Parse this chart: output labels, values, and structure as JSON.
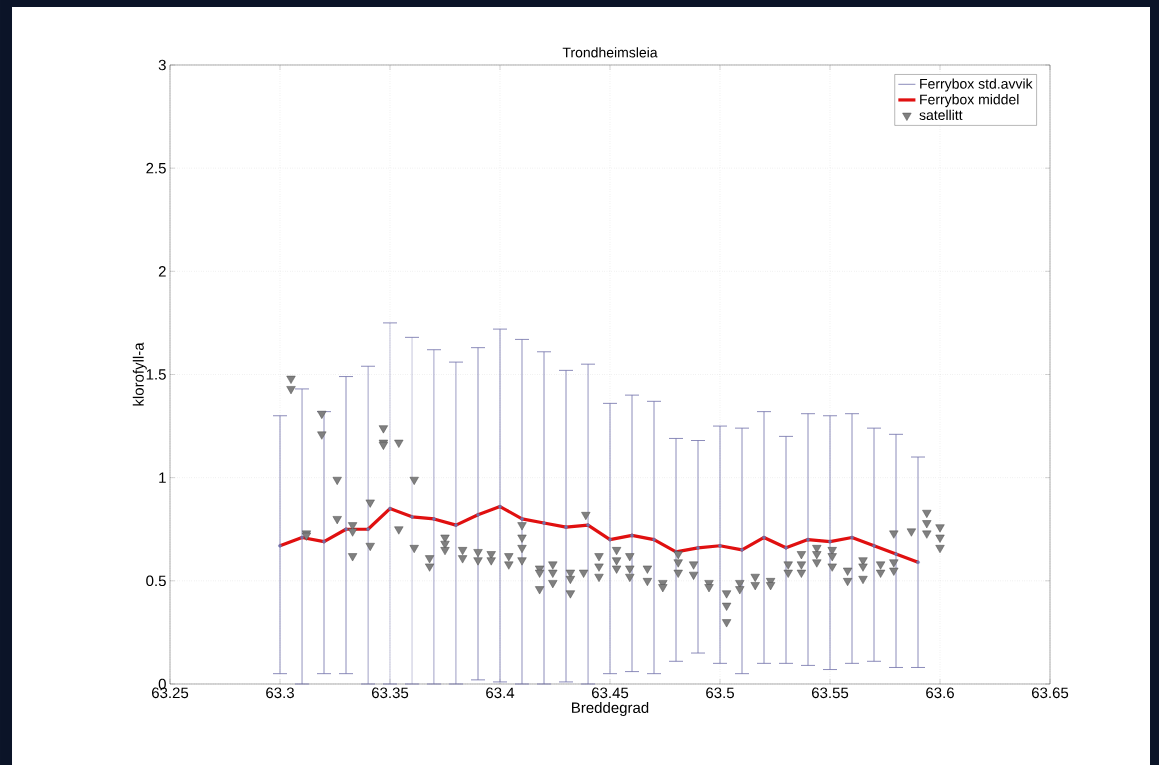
{
  "chart_data": {
    "type": "line",
    "title": "Trondheimsleia",
    "xlabel": "Breddegrad",
    "ylabel": "klorofyll-a",
    "xlim": [
      63.25,
      63.65
    ],
    "xticks": [
      63.25,
      63.3,
      63.35,
      63.4,
      63.45,
      63.5,
      63.55,
      63.6,
      63.65
    ],
    "ylim": [
      0,
      3
    ],
    "yticks": [
      0,
      0.5,
      1,
      1.5,
      2,
      2.5,
      3
    ],
    "grid": true,
    "legend": "top right",
    "series": [
      {
        "name": "Ferrybox std.avvik",
        "type": "scatter",
        "marker": "circle",
        "color": "#6f6fa8",
        "x": [
          63.3,
          63.31,
          63.32,
          63.33,
          63.34,
          63.35,
          63.36,
          63.37,
          63.38,
          63.39,
          63.4,
          63.41,
          63.42,
          63.43,
          63.44,
          63.45,
          63.46,
          63.47,
          63.48,
          63.49,
          63.5,
          63.51,
          63.52,
          63.53,
          63.54,
          63.55,
          63.56,
          63.57,
          63.58,
          63.59
        ],
        "values": [
          0.67,
          0.71,
          0.69,
          0.75,
          0.75,
          0.85,
          0.81,
          0.8,
          0.77,
          0.82,
          0.86,
          0.8,
          0.78,
          0.76,
          0.77,
          0.7,
          0.72,
          0.7,
          0.64,
          0.66,
          0.67,
          0.65,
          0.71,
          0.66,
          0.7,
          0.69,
          0.71,
          0.67,
          0.63,
          0.59
        ],
        "errors": [
          [
            0.05,
            1.3
          ],
          [
            0,
            1.43
          ],
          [
            0.05,
            1.32
          ],
          [
            0.05,
            1.49
          ],
          [
            0,
            1.54
          ],
          [
            0,
            1.75
          ],
          [
            0,
            1.68
          ],
          [
            0,
            1.62
          ],
          [
            0,
            1.56
          ],
          [
            0.02,
            1.63
          ],
          [
            0.01,
            1.72
          ],
          [
            0,
            1.67
          ],
          [
            0,
            1.61
          ],
          [
            0.01,
            1.52
          ],
          [
            0,
            1.55
          ],
          [
            0.05,
            1.36
          ],
          [
            0.06,
            1.4
          ],
          [
            0.05,
            1.37
          ],
          [
            0.11,
            1.19
          ],
          [
            0.15,
            1.18
          ],
          [
            0.1,
            1.25
          ],
          [
            0.05,
            1.24
          ],
          [
            0.1,
            1.32
          ],
          [
            0.1,
            1.2
          ],
          [
            0.09,
            1.31
          ],
          [
            0.07,
            1.3
          ],
          [
            0.1,
            1.31
          ],
          [
            0.11,
            1.24
          ],
          [
            0.08,
            1.21
          ],
          [
            0.08,
            1.1
          ]
        ]
      },
      {
        "name": "Ferrybox middel",
        "color": "#e01010",
        "line_style": "solid",
        "x": [
          63.3,
          63.31,
          63.32,
          63.33,
          63.34,
          63.35,
          63.36,
          63.37,
          63.38,
          63.39,
          63.4,
          63.41,
          63.42,
          63.43,
          63.44,
          63.45,
          63.46,
          63.47,
          63.48,
          63.49,
          63.5,
          63.51,
          63.52,
          63.53,
          63.54,
          63.55,
          63.56,
          63.57,
          63.58,
          63.59
        ],
        "values": [
          0.67,
          0.71,
          0.69,
          0.75,
          0.75,
          0.85,
          0.81,
          0.8,
          0.77,
          0.82,
          0.86,
          0.8,
          0.78,
          0.76,
          0.77,
          0.7,
          0.72,
          0.7,
          0.64,
          0.66,
          0.67,
          0.65,
          0.71,
          0.66,
          0.7,
          0.69,
          0.71,
          0.67,
          0.63,
          0.59
        ]
      },
      {
        "name": "satellitt",
        "type": "scatter",
        "marker": "triangle",
        "color": "#808080",
        "x": [
          63.305,
          63.305,
          63.312,
          63.312,
          63.319,
          63.319,
          63.326,
          63.326,
          63.333,
          63.333,
          63.333,
          63.341,
          63.341,
          63.347,
          63.347,
          63.347,
          63.354,
          63.354,
          63.361,
          63.361,
          63.368,
          63.368,
          63.375,
          63.375,
          63.375,
          63.383,
          63.383,
          63.39,
          63.39,
          63.396,
          63.396,
          63.404,
          63.404,
          63.41,
          63.41,
          63.41,
          63.41,
          63.418,
          63.418,
          63.418,
          63.424,
          63.424,
          63.424,
          63.432,
          63.432,
          63.432,
          63.438,
          63.439,
          63.445,
          63.445,
          63.445,
          63.453,
          63.453,
          63.453,
          63.459,
          63.459,
          63.459,
          63.467,
          63.467,
          63.474,
          63.474,
          63.481,
          63.481,
          63.481,
          63.488,
          63.488,
          63.495,
          63.495,
          63.503,
          63.503,
          63.503,
          63.509,
          63.509,
          63.516,
          63.516,
          63.523,
          63.523,
          63.531,
          63.531,
          63.537,
          63.537,
          63.537,
          63.544,
          63.544,
          63.544,
          63.551,
          63.551,
          63.551,
          63.558,
          63.558,
          63.565,
          63.565,
          63.565,
          63.573,
          63.573,
          63.579,
          63.579,
          63.579,
          63.587,
          63.594,
          63.594,
          63.594,
          63.6,
          63.6,
          63.6
        ],
        "values": [
          1.48,
          1.43,
          0.73,
          0.72,
          1.31,
          1.21,
          0.99,
          0.8,
          0.77,
          0.74,
          0.62,
          0.88,
          0.67,
          1.24,
          1.17,
          1.16,
          1.17,
          0.75,
          0.99,
          0.66,
          0.61,
          0.57,
          0.71,
          0.68,
          0.65,
          0.65,
          0.61,
          0.64,
          0.6,
          0.63,
          0.6,
          0.62,
          0.58,
          0.77,
          0.71,
          0.66,
          0.6,
          0.56,
          0.54,
          0.46,
          0.58,
          0.54,
          0.49,
          0.54,
          0.51,
          0.44,
          0.54,
          0.82,
          0.62,
          0.57,
          0.52,
          0.65,
          0.6,
          0.56,
          0.62,
          0.56,
          0.52,
          0.56,
          0.5,
          0.49,
          0.47,
          0.63,
          0.59,
          0.54,
          0.58,
          0.53,
          0.49,
          0.47,
          0.44,
          0.38,
          0.3,
          0.49,
          0.46,
          0.52,
          0.48,
          0.5,
          0.48,
          0.58,
          0.54,
          0.63,
          0.58,
          0.54,
          0.66,
          0.63,
          0.59,
          0.65,
          0.62,
          0.57,
          0.55,
          0.5,
          0.6,
          0.57,
          0.51,
          0.58,
          0.54,
          0.59,
          0.55,
          0.73,
          0.74,
          0.83,
          0.78,
          0.73,
          0.76,
          0.71,
          0.66
        ]
      }
    ]
  }
}
